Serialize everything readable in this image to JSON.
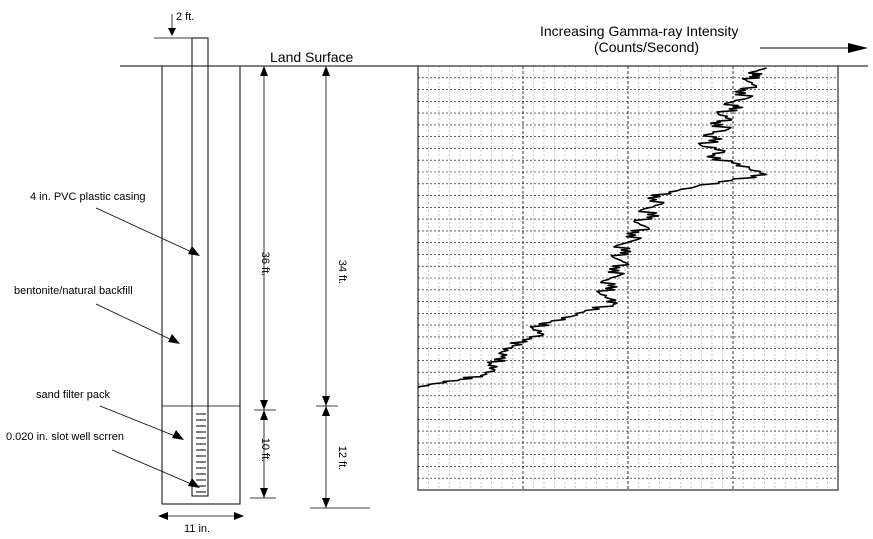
{
  "well": {
    "top_extension_label": "2 ft.",
    "land_surface_label": "Land Surface",
    "casing_label": "4 in. PVC plastic casing",
    "backfill_label": "bentonite/natural backfill",
    "filter_label": "sand filter pack",
    "screen_label": "0.020 in. slot  well scrren",
    "width_label": "11 in.",
    "dim_36_label": "36 ft.",
    "dim_34_label": "34 ft.",
    "dim_10_label": "10 ft.",
    "dim_12_label": "12 ft."
  },
  "log": {
    "title_line1": "Increasing Gamma-ray Intensity",
    "title_line2": "(Counts/Second)",
    "trace_points": [
      [
        1,
        0.0
      ],
      [
        0.96,
        0.01
      ],
      [
        0.98,
        0.02
      ],
      [
        0.94,
        0.03
      ],
      [
        0.97,
        0.045
      ],
      [
        0.91,
        0.06
      ],
      [
        0.95,
        0.075
      ],
      [
        0.88,
        0.09
      ],
      [
        0.93,
        0.1
      ],
      [
        0.86,
        0.115
      ],
      [
        0.9,
        0.13
      ],
      [
        0.84,
        0.14
      ],
      [
        0.89,
        0.155
      ],
      [
        0.82,
        0.17
      ],
      [
        0.87,
        0.18
      ],
      [
        0.81,
        0.195
      ],
      [
        0.88,
        0.21
      ],
      [
        0.83,
        0.225
      ],
      [
        0.9,
        0.24
      ],
      [
        0.95,
        0.255
      ],
      [
        1.0,
        0.27
      ],
      [
        0.9,
        0.285
      ],
      [
        0.8,
        0.3
      ],
      [
        0.72,
        0.315
      ],
      [
        0.66,
        0.33
      ],
      [
        0.7,
        0.345
      ],
      [
        0.64,
        0.36
      ],
      [
        0.69,
        0.375
      ],
      [
        0.62,
        0.39
      ],
      [
        0.66,
        0.405
      ],
      [
        0.6,
        0.42
      ],
      [
        0.63,
        0.435
      ],
      [
        0.57,
        0.45
      ],
      [
        0.61,
        0.465
      ],
      [
        0.56,
        0.48
      ],
      [
        0.6,
        0.495
      ],
      [
        0.55,
        0.51
      ],
      [
        0.58,
        0.525
      ],
      [
        0.53,
        0.54
      ],
      [
        0.57,
        0.555
      ],
      [
        0.52,
        0.57
      ],
      [
        0.55,
        0.585
      ],
      [
        0.56,
        0.6
      ],
      [
        0.48,
        0.615
      ],
      [
        0.44,
        0.63
      ],
      [
        0.38,
        0.645
      ],
      [
        0.33,
        0.66
      ],
      [
        0.36,
        0.675
      ],
      [
        0.3,
        0.69
      ],
      [
        0.27,
        0.705
      ],
      [
        0.24,
        0.72
      ],
      [
        0.25,
        0.735
      ],
      [
        0.21,
        0.75
      ],
      [
        0.22,
        0.765
      ],
      [
        0.18,
        0.78
      ],
      [
        0.12,
        0.79
      ],
      [
        0.05,
        0.8
      ],
      [
        0.0,
        0.81
      ]
    ]
  }
}
